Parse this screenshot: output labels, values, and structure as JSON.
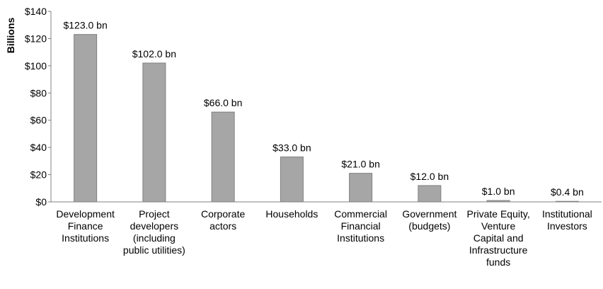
{
  "chart_data": {
    "type": "bar",
    "y_label": "Billions",
    "categories": [
      "Development Finance Institutions",
      "Project developers (including public utilities)",
      "Corporate actors",
      "Households",
      "Commercial Financial Institutions",
      "Government (budgets)",
      "Private Equity, Venture Capital and Infrastructure funds",
      "Institutional Investors"
    ],
    "values": [
      123.0,
      102.0,
      66.0,
      33.0,
      21.0,
      12.0,
      1.0,
      0.4
    ],
    "value_labels": [
      "$123.0 bn",
      "$102.0 bn",
      "$66.0 bn",
      "$33.0 bn",
      "$21.0 bn",
      "$12.0 bn",
      "$1.0 bn",
      "$0.4 bn"
    ],
    "color": "#a6a6a6",
    "ylim": [
      0,
      140
    ],
    "yticks": [
      {
        "value": 0,
        "label": "$0"
      },
      {
        "value": 20,
        "label": "$20"
      },
      {
        "value": 40,
        "label": "$40"
      },
      {
        "value": 60,
        "label": "$60"
      },
      {
        "value": 80,
        "label": "$80"
      },
      {
        "value": 100,
        "label": "$100"
      },
      {
        "value": 120,
        "label": "$120"
      },
      {
        "value": 140,
        "label": "$140"
      }
    ],
    "grid": false
  }
}
